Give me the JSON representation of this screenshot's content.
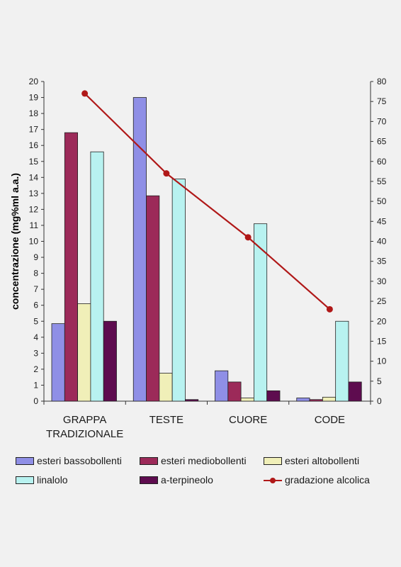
{
  "chart_data": {
    "type": "bar",
    "categories": [
      "GRAPPA TRADIZIONALE",
      "TESTE",
      "CUORE",
      "CODE"
    ],
    "category_lines": [
      [
        "GRAPPA",
        "TRADIZIONALE"
      ],
      [
        "TESTE"
      ],
      [
        "CUORE"
      ],
      [
        "CODE"
      ]
    ],
    "ylabel": "concentrazione (mg%ml a.a.)",
    "ylim": [
      0,
      20
    ],
    "y_ticks": [
      "0",
      "1",
      "2",
      "3",
      "4",
      "5",
      "6",
      "7",
      "8",
      "9",
      "10",
      "11",
      "12",
      "13",
      "14",
      "15",
      "16",
      "17",
      "18",
      "19",
      "20"
    ],
    "y2lim": [
      0,
      80
    ],
    "y2_ticks": [
      "0",
      "5",
      "10",
      "15",
      "20",
      "25",
      "30",
      "35",
      "40",
      "45",
      "50",
      "55",
      "60",
      "65",
      "70",
      "75",
      "80"
    ],
    "grid": false,
    "legend_position": "bottom",
    "series": [
      {
        "name": "esteri bassobollenti",
        "color": "#8f8fe6",
        "values": [
          4.85,
          19.0,
          1.9,
          0.2
        ]
      },
      {
        "name": "esteri mediobollenti",
        "color": "#9c2a59",
        "values": [
          16.8,
          12.85,
          1.2,
          0.1
        ]
      },
      {
        "name": "esteri altobollenti",
        "color": "#f0efb8",
        "values": [
          6.1,
          1.75,
          0.2,
          0.25
        ]
      },
      {
        "name": "linalolo",
        "color": "#b8f2f0",
        "values": [
          15.6,
          13.9,
          11.1,
          5.0
        ]
      },
      {
        "name": "a-terpineolo",
        "color": "#5e0c4f",
        "values": [
          5.0,
          0.1,
          0.65,
          1.2
        ]
      }
    ],
    "line_series": {
      "name": "gradazione alcolica",
      "color": "#b01818",
      "axis": "right",
      "values": [
        77,
        57,
        41,
        23
      ]
    }
  }
}
